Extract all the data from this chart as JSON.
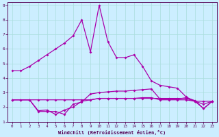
{
  "xlabel": "Windchill (Refroidissement éolien,°C)",
  "background_color": "#cceeff",
  "grid_color": "#aadddd",
  "line_color": "#aa00aa",
  "xlim": [
    -0.5,
    23.5
  ],
  "ylim": [
    1,
    9.2
  ],
  "xticks": [
    0,
    1,
    2,
    3,
    4,
    5,
    6,
    7,
    8,
    9,
    10,
    11,
    12,
    13,
    14,
    15,
    16,
    17,
    18,
    19,
    20,
    21,
    22,
    23
  ],
  "yticks": [
    1,
    2,
    3,
    4,
    5,
    6,
    7,
    8,
    9
  ],
  "s1_x": [
    0,
    1,
    2,
    3,
    4,
    5,
    6,
    7,
    8,
    9,
    10,
    11,
    12,
    13,
    14,
    15,
    16,
    17,
    18,
    19,
    20,
    21,
    22,
    23
  ],
  "s1_y": [
    4.5,
    4.5,
    4.8,
    5.2,
    5.6,
    6.0,
    6.4,
    6.9,
    8.0,
    5.8,
    9.0,
    6.5,
    5.4,
    5.4,
    5.6,
    4.8,
    3.8,
    3.5,
    3.4,
    3.3,
    2.7,
    2.4,
    1.9,
    2.4
  ],
  "s2_x": [
    0,
    1,
    2,
    3,
    4,
    5,
    6,
    7,
    8,
    9,
    10,
    11,
    12,
    13,
    14,
    15,
    16,
    17,
    18,
    19,
    20,
    21,
    22,
    23
  ],
  "s2_y": [
    2.5,
    2.5,
    2.5,
    1.7,
    1.7,
    1.7,
    1.5,
    2.2,
    2.35,
    2.9,
    3.0,
    3.05,
    3.1,
    3.1,
    3.15,
    3.2,
    3.25,
    2.55,
    2.55,
    2.55,
    2.65,
    2.45,
    1.9,
    2.4
  ],
  "s3_x": [
    0,
    1,
    2,
    3,
    4,
    5,
    6,
    7,
    8,
    9,
    10,
    11,
    12,
    13,
    14,
    15,
    16,
    17,
    18,
    19,
    20,
    21,
    22,
    23
  ],
  "s3_y": [
    2.5,
    2.5,
    2.5,
    1.75,
    1.8,
    1.5,
    1.8,
    2.0,
    2.4,
    2.5,
    2.6,
    2.6,
    2.6,
    2.6,
    2.6,
    2.65,
    2.65,
    2.5,
    2.5,
    2.5,
    2.5,
    2.4,
    2.2,
    2.4
  ],
  "s4_x": [
    0,
    1,
    2,
    3,
    4,
    5,
    6,
    7,
    8,
    9,
    10,
    11,
    12,
    13,
    14,
    15,
    16,
    17,
    18,
    19,
    20,
    21,
    22,
    23
  ],
  "s4_y": [
    2.5,
    2.5,
    2.5,
    2.5,
    2.5,
    2.5,
    2.5,
    2.5,
    2.5,
    2.5,
    2.6,
    2.6,
    2.6,
    2.6,
    2.6,
    2.6,
    2.6,
    2.6,
    2.6,
    2.6,
    2.6,
    2.4,
    2.4,
    2.4
  ]
}
